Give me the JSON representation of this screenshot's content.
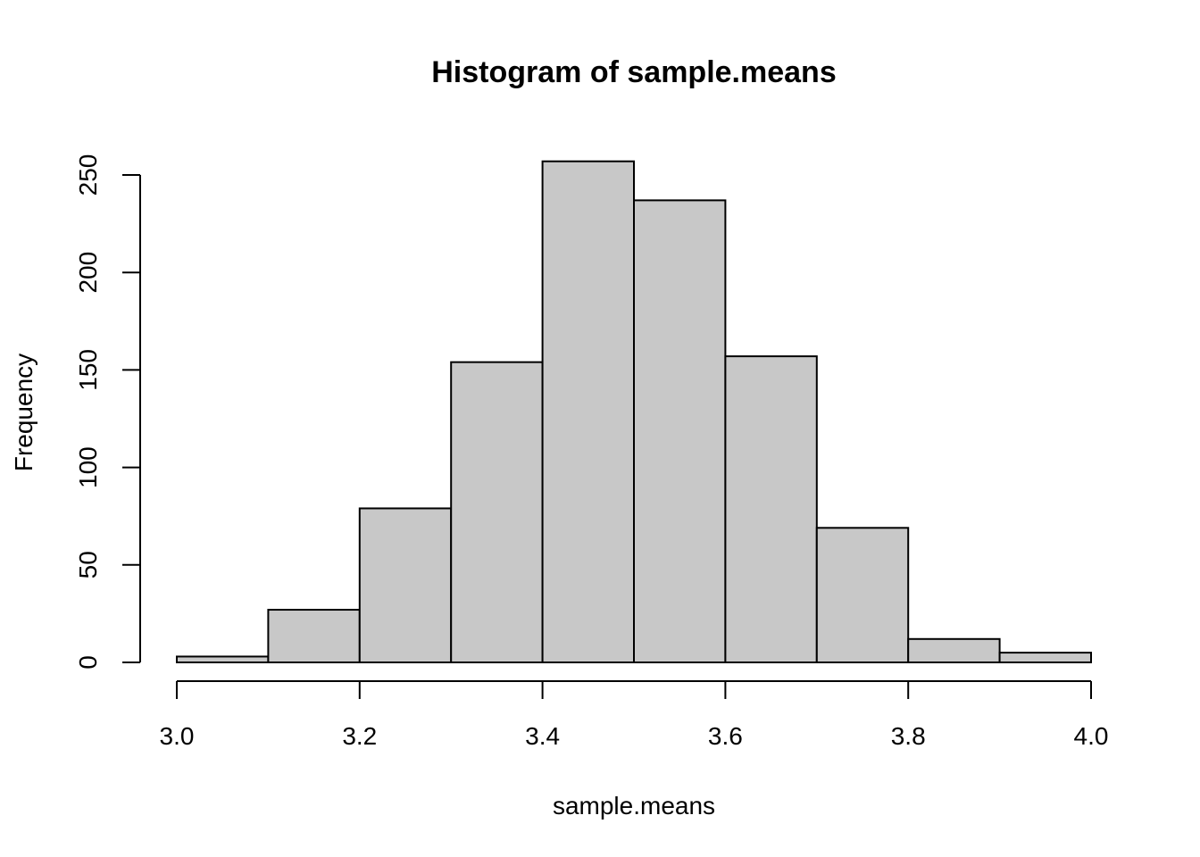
{
  "chart_data": {
    "type": "bar",
    "title": "Histogram of sample.means",
    "xlabel": "sample.means",
    "ylabel": "Frequency",
    "bins": [
      {
        "start": 3.0,
        "end": 3.1,
        "count": 3
      },
      {
        "start": 3.1,
        "end": 3.2,
        "count": 27
      },
      {
        "start": 3.2,
        "end": 3.3,
        "count": 79
      },
      {
        "start": 3.3,
        "end": 3.4,
        "count": 154
      },
      {
        "start": 3.4,
        "end": 3.5,
        "count": 257
      },
      {
        "start": 3.5,
        "end": 3.6,
        "count": 237
      },
      {
        "start": 3.6,
        "end": 3.7,
        "count": 157
      },
      {
        "start": 3.7,
        "end": 3.8,
        "count": 69
      },
      {
        "start": 3.8,
        "end": 3.9,
        "count": 12
      },
      {
        "start": 3.9,
        "end": 4.0,
        "count": 5
      }
    ],
    "xlim": [
      3.0,
      4.0
    ],
    "ylim": [
      0,
      250
    ],
    "x_ticks": [
      "3.0",
      "3.2",
      "3.4",
      "3.6",
      "3.8",
      "4.0"
    ],
    "y_ticks": [
      "0",
      "50",
      "100",
      "150",
      "200",
      "250"
    ],
    "bar_fill": "#c8c8c8",
    "bar_stroke": "#000000",
    "grid": false,
    "legend": "none"
  }
}
